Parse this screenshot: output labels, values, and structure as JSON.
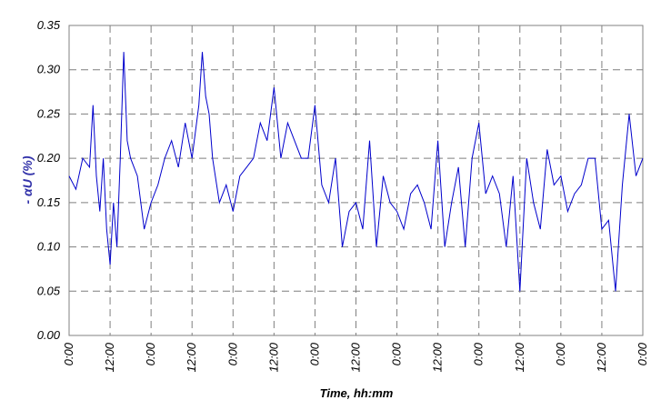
{
  "chart_data": {
    "type": "line",
    "xlabel": "Time, hh:mm",
    "ylabel": "- αU (%)",
    "ylim": [
      0,
      0.35
    ],
    "y_ticks": [
      "0.00",
      "0.05",
      "0.10",
      "0.15",
      "0.20",
      "0.25",
      "0.30",
      "0.35"
    ],
    "x_ticks": [
      "0:00",
      "12:00",
      "0:00",
      "12:00",
      "0:00",
      "12:00",
      "0:00",
      "12:00",
      "0:00",
      "12:00",
      "0:00",
      "12:00",
      "0:00",
      "12:00",
      "0:00"
    ],
    "x_range_hours": [
      0,
      168
    ],
    "grid": true,
    "line_color": "#0000cc",
    "series": [
      {
        "x_hours": [
          0,
          2,
          4,
          6,
          7,
          8,
          9,
          10,
          11,
          12,
          13,
          14,
          15,
          16,
          17,
          18,
          20,
          22,
          24,
          26,
          28,
          30,
          32,
          34,
          36,
          38,
          39,
          40,
          41,
          42,
          44,
          46,
          48,
          50,
          52,
          54,
          56,
          58,
          60,
          62,
          64,
          66,
          68,
          70,
          72,
          74,
          76,
          78,
          80,
          82,
          84,
          86,
          88,
          90,
          92,
          94,
          96,
          98,
          100,
          102,
          104,
          106,
          108,
          110,
          112,
          114,
          116,
          118,
          120,
          122,
          124,
          126,
          128,
          130,
          132,
          134,
          136,
          138,
          140,
          142,
          144,
          146,
          148,
          150,
          152,
          154,
          156,
          158,
          160,
          162,
          164,
          166,
          168
        ],
        "values": [
          0.18,
          0.165,
          0.2,
          0.19,
          0.26,
          0.18,
          0.14,
          0.2,
          0.12,
          0.08,
          0.15,
          0.1,
          0.2,
          0.32,
          0.22,
          0.2,
          0.18,
          0.12,
          0.15,
          0.17,
          0.2,
          0.22,
          0.19,
          0.24,
          0.2,
          0.26,
          0.32,
          0.27,
          0.25,
          0.2,
          0.15,
          0.17,
          0.14,
          0.18,
          0.19,
          0.2,
          0.24,
          0.22,
          0.28,
          0.2,
          0.24,
          0.22,
          0.2,
          0.2,
          0.26,
          0.17,
          0.15,
          0.2,
          0.1,
          0.14,
          0.15,
          0.12,
          0.22,
          0.1,
          0.18,
          0.15,
          0.14,
          0.12,
          0.16,
          0.17,
          0.15,
          0.12,
          0.22,
          0.1,
          0.15,
          0.19,
          0.1,
          0.2,
          0.24,
          0.16,
          0.18,
          0.16,
          0.1,
          0.18,
          0.05,
          0.2,
          0.15,
          0.12,
          0.21,
          0.17,
          0.18,
          0.14,
          0.16,
          0.17,
          0.2,
          0.2,
          0.12,
          0.13,
          0.05,
          0.17,
          0.25,
          0.18,
          0.2
        ]
      }
    ]
  }
}
